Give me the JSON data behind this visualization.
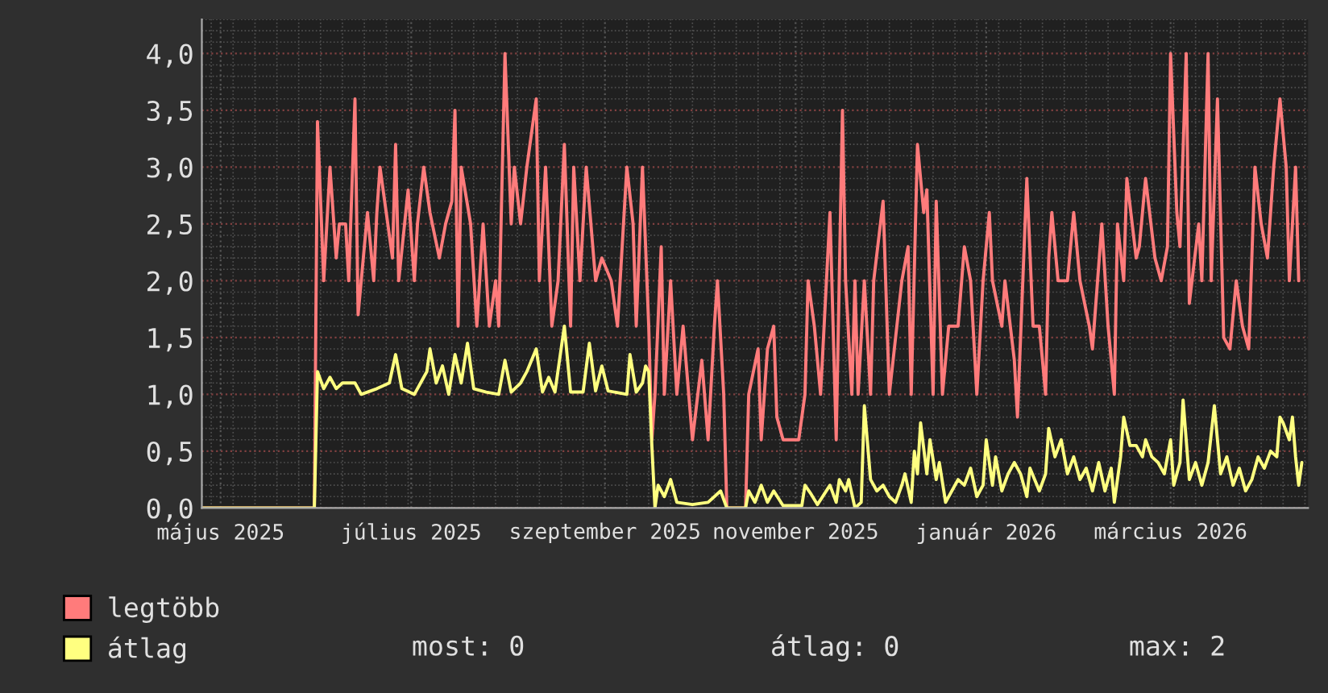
{
  "chart_data": {
    "type": "line",
    "xlim": [
      "2025-04-25",
      "2026-04-14"
    ],
    "xticks": [
      {
        "value": "2025-05-01",
        "label": "május 2025"
      },
      {
        "value": "2025-07-01",
        "label": "július 2025"
      },
      {
        "value": "2025-09-01",
        "label": "szeptember 2025"
      },
      {
        "value": "2025-11-01",
        "label": "november 2025"
      },
      {
        "value": "2026-01-01",
        "label": "január 2026"
      },
      {
        "value": "2026-03-01",
        "label": "március 2026"
      }
    ],
    "ylim": [
      0,
      4.3
    ],
    "yticks": [
      {
        "value": 0,
        "label": "0,0"
      },
      {
        "value": 0.5,
        "label": "0,5"
      },
      {
        "value": 1,
        "label": "1,0"
      },
      {
        "value": 1.5,
        "label": "1,5"
      },
      {
        "value": 2,
        "label": "2,0"
      },
      {
        "value": 2.5,
        "label": "2,5"
      },
      {
        "value": 3,
        "label": "3,0"
      },
      {
        "value": 3.5,
        "label": "3,5"
      },
      {
        "value": 4,
        "label": "4,0"
      }
    ],
    "grid": true,
    "legend": "bottom",
    "marker": "none",
    "line_style": "solid",
    "annotations": [
      "most: 0",
      "átlag: 0",
      "max: 2"
    ],
    "series": [
      {
        "name": "legtöbb",
        "color": "#ff7b7b",
        "x": [
          "2025-04-25",
          "2025-05-31",
          "2025-06-01",
          "2025-06-03",
          "2025-06-05",
          "2025-06-07",
          "2025-06-08",
          "2025-06-10",
          "2025-06-11",
          "2025-06-13",
          "2025-06-14",
          "2025-06-16",
          "2025-06-17",
          "2025-06-19",
          "2025-06-20",
          "2025-06-21",
          "2025-06-23",
          "2025-06-25",
          "2025-06-26",
          "2025-06-27",
          "2025-06-30",
          "2025-07-02",
          "2025-07-03",
          "2025-07-05",
          "2025-07-07",
          "2025-07-10",
          "2025-07-12",
          "2025-07-14",
          "2025-07-15",
          "2025-07-16",
          "2025-07-17",
          "2025-07-20",
          "2025-07-22",
          "2025-07-24",
          "2025-07-26",
          "2025-07-28",
          "2025-07-29",
          "2025-07-31",
          "2025-08-02",
          "2025-08-03",
          "2025-08-05",
          "2025-08-07",
          "2025-08-10",
          "2025-08-11",
          "2025-08-13",
          "2025-08-15",
          "2025-08-17",
          "2025-08-19",
          "2025-08-21",
          "2025-08-22",
          "2025-08-24",
          "2025-08-26",
          "2025-08-29",
          "2025-08-31",
          "2025-09-03",
          "2025-09-05",
          "2025-09-08",
          "2025-09-10",
          "2025-09-11",
          "2025-09-13",
          "2025-09-15",
          "2025-09-16",
          "2025-09-17",
          "2025-09-19",
          "2025-09-20",
          "2025-09-22",
          "2025-09-24",
          "2025-09-26",
          "2025-09-29",
          "2025-10-02",
          "2025-10-04",
          "2025-10-06",
          "2025-10-07",
          "2025-10-09",
          "2025-10-10",
          "2025-10-16",
          "2025-10-17",
          "2025-10-20",
          "2025-10-21",
          "2025-10-23",
          "2025-10-25",
          "2025-10-26",
          "2025-10-28",
          "2025-11-02",
          "2025-11-04",
          "2025-11-05",
          "2025-11-07",
          "2025-11-09",
          "2025-11-12",
          "2025-11-14",
          "2025-11-16",
          "2025-11-17",
          "2025-11-19",
          "2025-11-20",
          "2025-11-21",
          "2025-11-23",
          "2025-11-25",
          "2025-11-26",
          "2025-11-29",
          "2025-12-01",
          "2025-12-05",
          "2025-12-07",
          "2025-12-08",
          "2025-12-10",
          "2025-12-12",
          "2025-12-13",
          "2025-12-15",
          "2025-12-16",
          "2025-12-18",
          "2025-12-20",
          "2025-12-23",
          "2025-12-25",
          "2025-12-27",
          "2025-12-29",
          "2025-12-31",
          "2026-01-02",
          "2026-01-03",
          "2026-01-06",
          "2026-01-07",
          "2026-01-10",
          "2026-01-11",
          "2026-01-14",
          "2026-01-16",
          "2026-01-18",
          "2026-01-20",
          "2026-01-21",
          "2026-01-22",
          "2026-01-24",
          "2026-01-27",
          "2026-01-29",
          "2026-01-31",
          "2026-02-03",
          "2026-02-04",
          "2026-02-07",
          "2026-02-09",
          "2026-02-11",
          "2026-02-12",
          "2026-02-14",
          "2026-02-15",
          "2026-02-18",
          "2026-02-19",
          "2026-02-21",
          "2026-02-24",
          "2026-02-26",
          "2026-02-28",
          "2026-03-01",
          "2026-03-03",
          "2026-03-04",
          "2026-03-06",
          "2026-03-07",
          "2026-03-10",
          "2026-03-11",
          "2026-03-13",
          "2026-03-14",
          "2026-03-16",
          "2026-03-18",
          "2026-03-20",
          "2026-03-22",
          "2026-03-24",
          "2026-03-26",
          "2026-03-28",
          "2026-03-30",
          "2026-04-01",
          "2026-04-03",
          "2026-04-05",
          "2026-04-07",
          "2026-04-08",
          "2026-04-10",
          "2026-04-11"
        ],
        "values": [
          0,
          0,
          3.4,
          2.0,
          3.0,
          2.2,
          2.5,
          2.5,
          2.0,
          3.6,
          1.7,
          2.3,
          2.6,
          2.0,
          2.6,
          3.0,
          2.6,
          2.2,
          3.2,
          2.0,
          2.8,
          2.0,
          2.5,
          3.0,
          2.6,
          2.2,
          2.5,
          2.7,
          3.5,
          1.6,
          3.0,
          2.5,
          1.6,
          2.5,
          1.6,
          2.0,
          1.6,
          4.0,
          2.5,
          3.0,
          2.5,
          3.0,
          3.6,
          2.0,
          3.0,
          1.6,
          2.0,
          3.2,
          1.6,
          3.0,
          2.0,
          3.0,
          2.0,
          2.2,
          2.0,
          1.6,
          3.0,
          2.5,
          1.6,
          3.0,
          1.6,
          0.6,
          1.0,
          2.3,
          1.0,
          2.0,
          1.0,
          1.6,
          0.6,
          1.3,
          0.6,
          1.6,
          2.0,
          1.0,
          0,
          0,
          1.0,
          1.4,
          0.6,
          1.4,
          1.6,
          0.8,
          0.6,
          0.6,
          1.0,
          2.0,
          1.6,
          1.0,
          2.6,
          0.6,
          3.5,
          2.0,
          1.0,
          2.0,
          1.0,
          2.0,
          1.0,
          2.0,
          2.7,
          1.0,
          2.0,
          2.3,
          1.0,
          3.2,
          2.6,
          2.8,
          1.0,
          2.7,
          1.0,
          1.6,
          1.6,
          2.3,
          2.0,
          1.0,
          2.0,
          2.6,
          2.0,
          1.6,
          2.0,
          1.3,
          0.8,
          2.9,
          1.6,
          1.6,
          1.0,
          2.2,
          2.6,
          2.0,
          2.0,
          2.6,
          2.0,
          1.6,
          1.4,
          2.5,
          1.6,
          1.0,
          2.5,
          2.0,
          2.9,
          2.2,
          2.3,
          2.9,
          2.2,
          2.0,
          2.3,
          4.0,
          2.6,
          2.3,
          4.0,
          1.8,
          2.5,
          2.0,
          4.0,
          2.0,
          3.6,
          1.5,
          1.4,
          2.0,
          1.6,
          1.4,
          3.0,
          2.5,
          2.2,
          3.0,
          3.6,
          3.0,
          2.0,
          3.0,
          2.0
        ]
      },
      {
        "name": "átlag",
        "color": "#ffff80",
        "x": [
          "2025-04-25",
          "2025-05-31",
          "2025-06-01",
          "2025-06-03",
          "2025-06-05",
          "2025-06-07",
          "2025-06-09",
          "2025-06-13",
          "2025-06-15",
          "2025-06-20",
          "2025-06-24",
          "2025-06-26",
          "2025-06-28",
          "2025-07-02",
          "2025-07-04",
          "2025-07-06",
          "2025-07-07",
          "2025-07-09",
          "2025-07-11",
          "2025-07-13",
          "2025-07-15",
          "2025-07-17",
          "2025-07-19",
          "2025-07-21",
          "2025-07-25",
          "2025-07-29",
          "2025-07-31",
          "2025-08-02",
          "2025-08-05",
          "2025-08-07",
          "2025-08-10",
          "2025-08-12",
          "2025-08-14",
          "2025-08-16",
          "2025-08-19",
          "2025-08-21",
          "2025-08-25",
          "2025-08-27",
          "2025-08-29",
          "2025-08-31",
          "2025-09-02",
          "2025-09-08",
          "2025-09-09",
          "2025-09-11",
          "2025-09-13",
          "2025-09-14",
          "2025-09-15",
          "2025-09-16",
          "2025-09-17",
          "2025-09-18",
          "2025-09-20",
          "2025-09-22",
          "2025-09-24",
          "2025-09-29",
          "2025-10-04",
          "2025-10-08",
          "2025-10-10",
          "2025-10-16",
          "2025-10-17",
          "2025-10-19",
          "2025-10-21",
          "2025-10-23",
          "2025-10-25",
          "2025-10-28",
          "2025-11-03",
          "2025-11-04",
          "2025-11-06",
          "2025-11-08",
          "2025-11-12",
          "2025-11-14",
          "2025-11-15",
          "2025-11-17",
          "2025-11-18",
          "2025-11-20",
          "2025-11-22",
          "2025-11-23",
          "2025-11-25",
          "2025-11-27",
          "2025-11-29",
          "2025-12-01",
          "2025-12-03",
          "2025-12-05",
          "2025-12-06",
          "2025-12-08",
          "2025-12-09",
          "2025-12-10",
          "2025-12-11",
          "2025-12-13",
          "2025-12-14",
          "2025-12-16",
          "2025-12-17",
          "2025-12-19",
          "2025-12-21",
          "2025-12-23",
          "2025-12-25",
          "2025-12-27",
          "2025-12-29",
          "2025-12-31",
          "2026-01-01",
          "2026-01-03",
          "2026-01-04",
          "2026-01-06",
          "2026-01-08",
          "2026-01-10",
          "2026-01-12",
          "2026-01-14",
          "2026-01-15",
          "2026-01-18",
          "2026-01-20",
          "2026-01-21",
          "2026-01-23",
          "2026-01-25",
          "2026-01-27",
          "2026-01-29",
          "2026-01-31",
          "2026-02-02",
          "2026-02-04",
          "2026-02-06",
          "2026-02-08",
          "2026-02-10",
          "2026-02-11",
          "2026-02-13",
          "2026-02-14",
          "2026-02-16",
          "2026-02-18",
          "2026-02-20",
          "2026-02-21",
          "2026-02-23",
          "2026-02-25",
          "2026-02-27",
          "2026-03-01",
          "2026-03-02",
          "2026-03-04",
          "2026-03-05",
          "2026-03-07",
          "2026-03-09",
          "2026-03-11",
          "2026-03-13",
          "2026-03-15",
          "2026-03-17",
          "2026-03-19",
          "2026-03-21",
          "2026-03-23",
          "2026-03-25",
          "2026-03-27",
          "2026-03-29",
          "2026-03-31",
          "2026-04-02",
          "2026-04-04",
          "2026-04-05",
          "2026-04-06",
          "2026-04-08",
          "2026-04-09",
          "2026-04-10",
          "2026-04-11",
          "2026-04-12"
        ],
        "values": [
          0,
          0,
          1.2,
          1.05,
          1.15,
          1.05,
          1.1,
          1.1,
          1.0,
          1.05,
          1.1,
          1.35,
          1.05,
          1.0,
          1.1,
          1.2,
          1.4,
          1.1,
          1.25,
          1.0,
          1.35,
          1.1,
          1.45,
          1.05,
          1.02,
          1.0,
          1.3,
          1.02,
          1.1,
          1.2,
          1.4,
          1.02,
          1.15,
          1.02,
          1.6,
          1.02,
          1.02,
          1.45,
          1.03,
          1.25,
          1.03,
          1.0,
          1.35,
          1.02,
          1.1,
          1.25,
          1.2,
          0.55,
          0.0,
          0.2,
          0.1,
          0.25,
          0.05,
          0.03,
          0.05,
          0.15,
          0,
          0,
          0.15,
          0.05,
          0.2,
          0.05,
          0.15,
          0.02,
          0.02,
          0.2,
          0.12,
          0.03,
          0.2,
          0.05,
          0.25,
          0.15,
          0.25,
          0.0,
          0.05,
          0.9,
          0.25,
          0.15,
          0.2,
          0.1,
          0.05,
          0.2,
          0.3,
          0.05,
          0.5,
          0.3,
          0.75,
          0.3,
          0.6,
          0.25,
          0.4,
          0.05,
          0.15,
          0.25,
          0.2,
          0.35,
          0.1,
          0.2,
          0.6,
          0.2,
          0.45,
          0.15,
          0.3,
          0.4,
          0.3,
          0.1,
          0.35,
          0.15,
          0.3,
          0.7,
          0.45,
          0.6,
          0.3,
          0.45,
          0.25,
          0.35,
          0.15,
          0.4,
          0.15,
          0.35,
          0.05,
          0.45,
          0.8,
          0.55,
          0.55,
          0.45,
          0.6,
          0.45,
          0.4,
          0.3,
          0.6,
          0.2,
          0.4,
          0.95,
          0.25,
          0.4,
          0.2,
          0.4,
          0.9,
          0.3,
          0.45,
          0.2,
          0.35,
          0.15,
          0.25,
          0.45,
          0.35,
          0.5,
          0.45,
          0.8,
          0.75,
          0.6,
          0.8,
          0.45,
          0.2,
          0.4
        ]
      }
    ]
  }
}
